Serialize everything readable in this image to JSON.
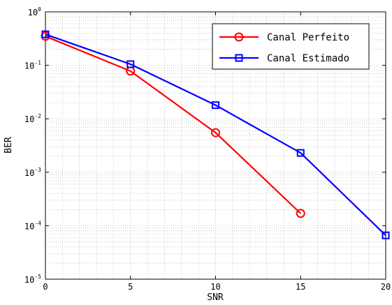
{
  "chart_data": {
    "type": "line",
    "xlabel": "SNR",
    "ylabel": "BER",
    "xlim": [
      0,
      20
    ],
    "ylim": [
      1e-05,
      1
    ],
    "yscale": "log",
    "grid": true,
    "legend_position": "top-right",
    "x_ticks": [
      "0",
      "5",
      "10",
      "15",
      "20"
    ],
    "y_ticks": [
      {
        "base": "10",
        "exp": "0"
      },
      {
        "base": "10",
        "exp": "-1"
      },
      {
        "base": "10",
        "exp": "-2"
      },
      {
        "base": "10",
        "exp": "-3"
      },
      {
        "base": "10",
        "exp": "-4"
      },
      {
        "base": "10",
        "exp": "-5"
      }
    ],
    "series": [
      {
        "name": "Canal Perfeito",
        "color": "#ff0000",
        "marker": "circle",
        "x": [
          0,
          5,
          10,
          15
        ],
        "y": [
          0.35,
          0.078,
          0.0055,
          0.00017
        ]
      },
      {
        "name": "Canal Estimado",
        "color": "#0000ff",
        "marker": "square",
        "x": [
          0,
          5,
          10,
          15,
          20
        ],
        "y": [
          0.38,
          0.105,
          0.018,
          0.0023,
          6.6e-05
        ]
      }
    ]
  }
}
